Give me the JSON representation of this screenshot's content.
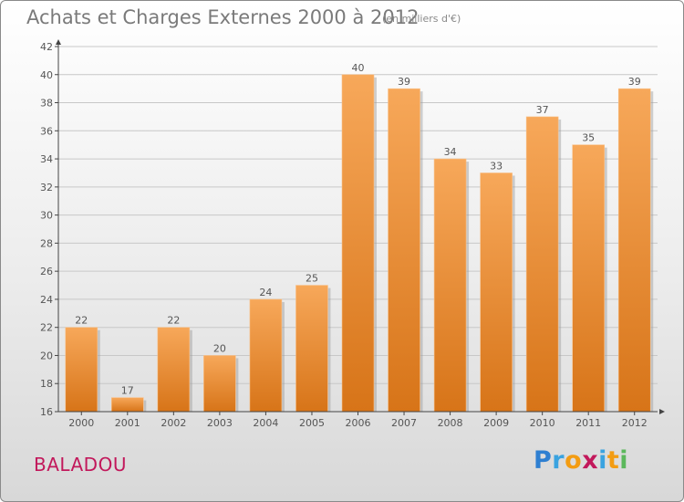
{
  "header": {
    "title": "Achats et Charges Externes 2000 à 2012",
    "unit_note": "(en milliers d'€)"
  },
  "footer": {
    "place_name": "BALADOU",
    "logo_letters": [
      "P",
      "r",
      "o",
      "x",
      "i",
      "t",
      "i"
    ],
    "logo_colors": [
      "#2e7fd1",
      "#3aa3e0",
      "#f39c12",
      "#c2185b",
      "#3aa3e0",
      "#f39c12",
      "#5cb85c"
    ]
  },
  "colors": {
    "bar_top": "#f7a85a",
    "bar_bottom": "#d77418",
    "axis": "#444444",
    "grid": "#c8c8c8",
    "text": "#555555"
  },
  "chart_data": {
    "type": "bar",
    "title": "Achats et Charges Externes 2000 à 2012",
    "subtitle": "(en milliers d'€)",
    "xlabel": "",
    "ylabel": "",
    "categories": [
      "2000",
      "2001",
      "2002",
      "2003",
      "2004",
      "2005",
      "2006",
      "2007",
      "2008",
      "2009",
      "2010",
      "2011",
      "2012"
    ],
    "values": [
      22,
      17,
      22,
      20,
      24,
      25,
      40,
      39,
      34,
      33,
      37,
      35,
      39
    ],
    "ylim": [
      16,
      42
    ],
    "yticks": [
      16,
      18,
      20,
      22,
      24,
      26,
      28,
      30,
      32,
      34,
      36,
      38,
      40,
      42
    ],
    "grid": true,
    "legend": "none"
  }
}
